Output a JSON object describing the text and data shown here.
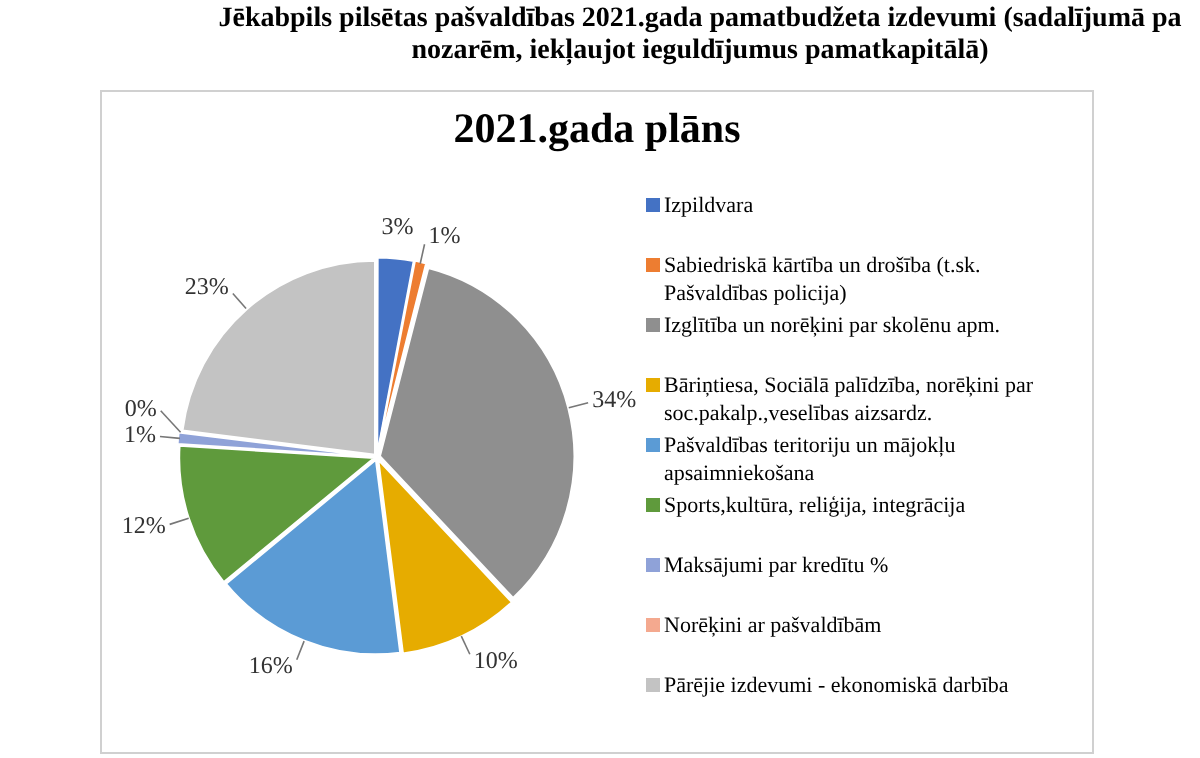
{
  "chart_data": {
    "type": "pie",
    "title": "Jēkabpils pilsētas pašvaldības 2021.gada pamatbudžeta izdevumi (sadalījumā pa nozarēm, iekļaujot ieguldījumus pamatkapitālā)",
    "subtitle": "2021.gada plāns",
    "categories": [
      "Izpildvara",
      "Sabiedriskā kārtība un drošība (t.sk. Pašvaldības policija)",
      "Izglītība un norēķini par skolēnu apm.",
      "Bāriņtiesa, Sociālā palīdzība, norēķini par soc.pakalp.,veselības aizsardz.",
      "Pašvaldības teritoriju un mājokļu apsaimniekošana",
      "Sports,kultūra, reliģija, integrācija",
      "Maksājumi par kredītu %",
      "Norēķini ar pašvaldībām",
      "Pārējie izdevumi - ekonomiskā darbība"
    ],
    "values": [
      3,
      1,
      34,
      10,
      16,
      12,
      1,
      0,
      23
    ],
    "value_labels": [
      "3%",
      "1%",
      "34%",
      "10%",
      "16%",
      "12%",
      "1%",
      "0%",
      "23%"
    ],
    "colors": [
      "#4472c4",
      "#ed7d31",
      "#8f8f8f",
      "#e6ac00",
      "#5b9bd5",
      "#5f9a3c",
      "#8fa2d8",
      "#f4a98f",
      "#c3c3c3"
    ],
    "legend": "right"
  }
}
